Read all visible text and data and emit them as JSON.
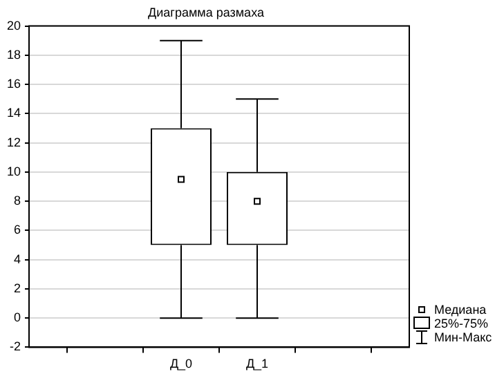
{
  "chart_data": {
    "type": "box",
    "title": "Диаграмма размаха",
    "categories": [
      "Д_0",
      "Д_1"
    ],
    "boxes": [
      {
        "low": 0,
        "q1": 5,
        "median": 9.5,
        "q3": 13,
        "high": 19
      },
      {
        "low": 0,
        "q1": 5,
        "median": 8,
        "q3": 10,
        "high": 15
      }
    ],
    "ylim": [
      -2,
      20
    ],
    "yticks": [
      -2,
      0,
      2,
      4,
      6,
      8,
      10,
      12,
      14,
      16,
      18,
      20
    ],
    "grid": "y",
    "annotations": [
      "Медиана",
      "25%-75%",
      "Мин-Макс"
    ]
  }
}
